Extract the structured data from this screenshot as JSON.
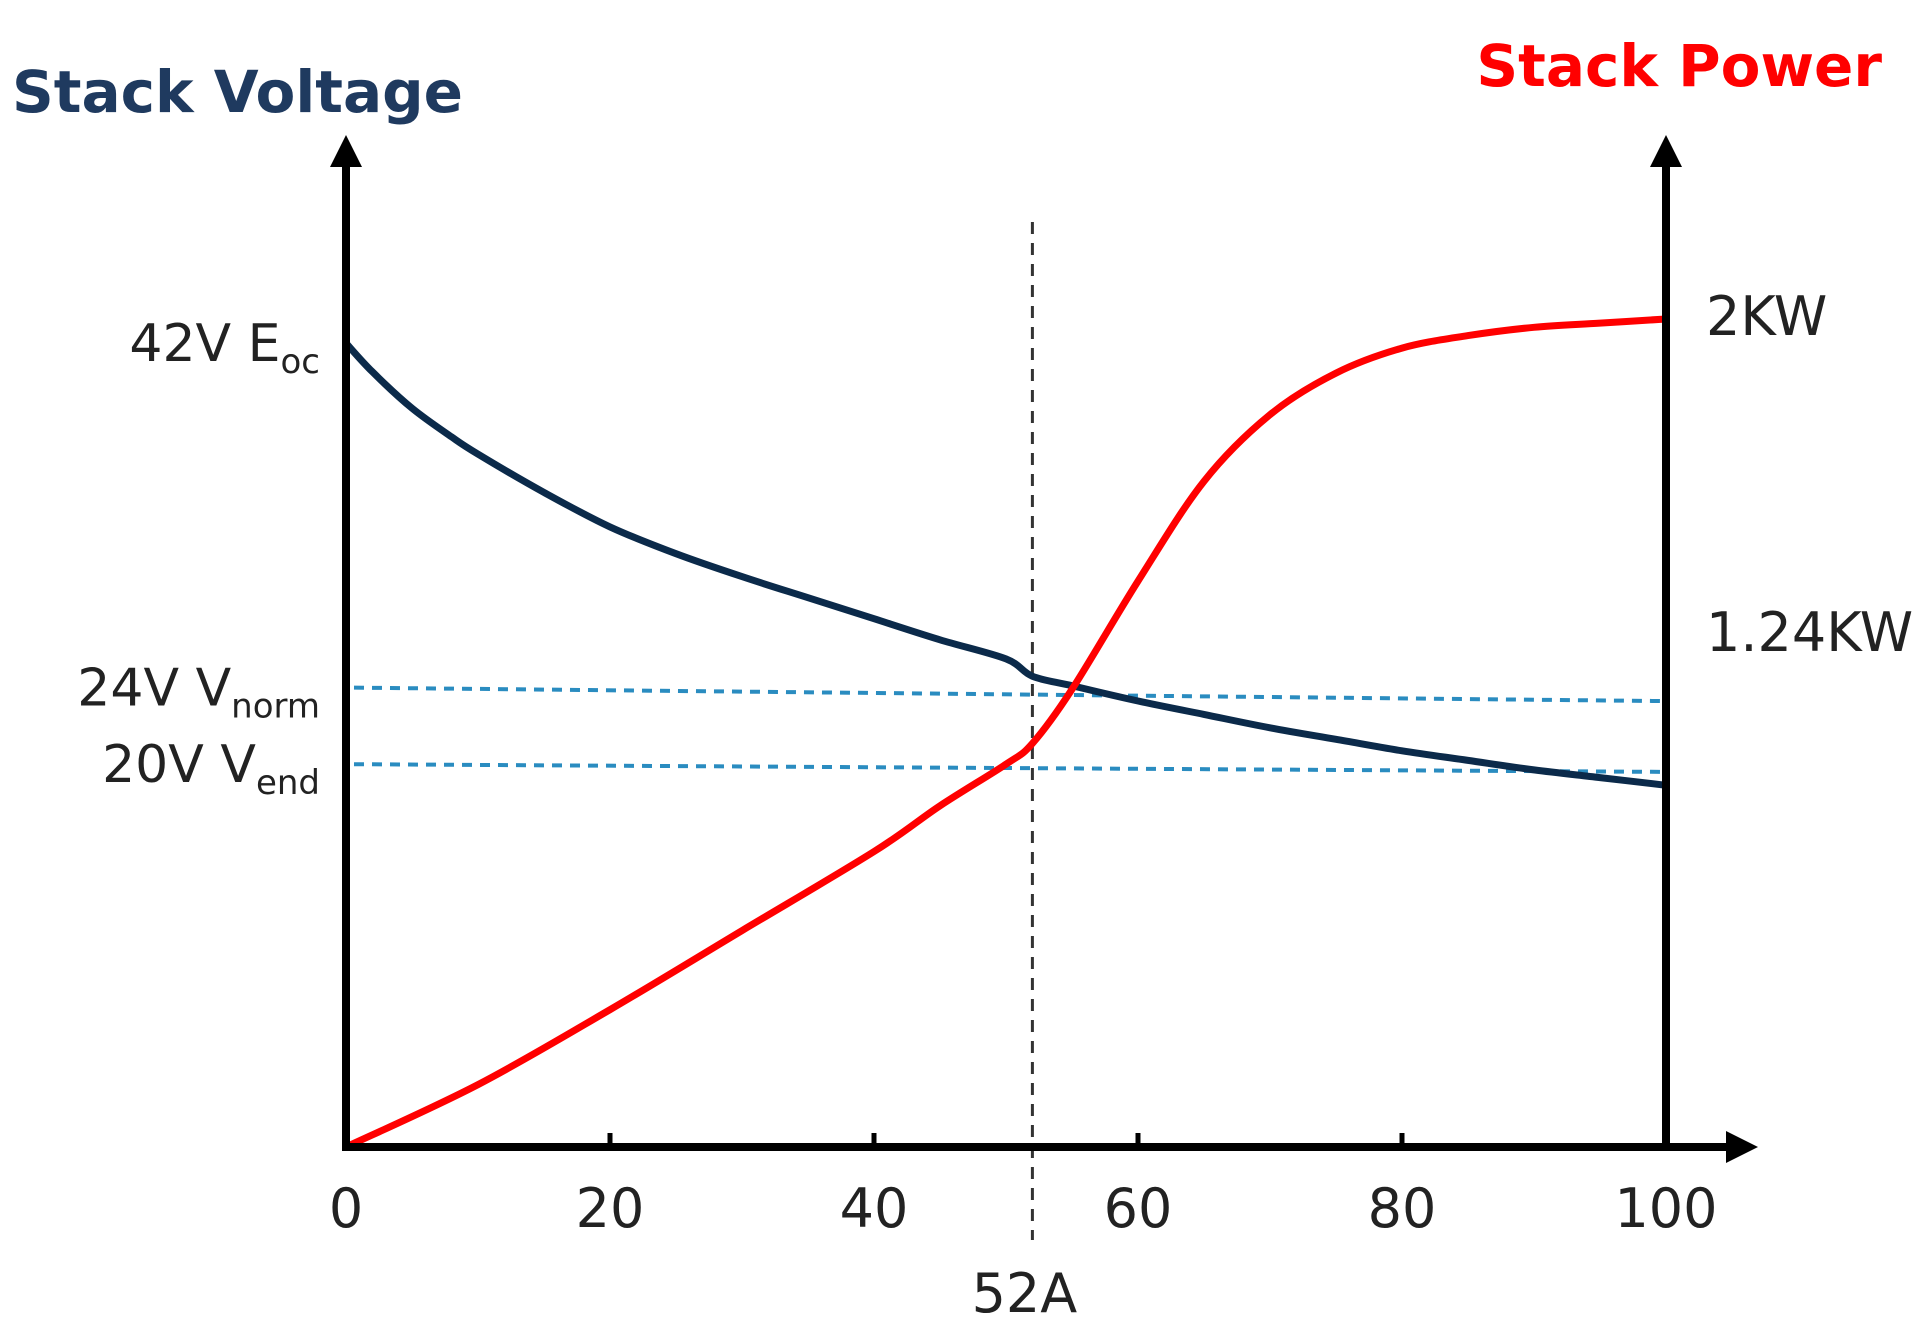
{
  "chart_data": {
    "type": "line",
    "title": "",
    "x_ticks": [
      "0",
      "20",
      "40",
      "60",
      "80",
      "100"
    ],
    "x_range": [
      0,
      104
    ],
    "x_marker": {
      "x": 52,
      "label": "52A"
    },
    "y_left": {
      "label": "Stack Voltage",
      "range": [
        0,
        50
      ],
      "annotations": [
        {
          "value": 42,
          "text": "42V E",
          "sub": "oc"
        },
        {
          "value": 24,
          "text": "24V V",
          "sub": "norm"
        },
        {
          "value": 20,
          "text": "20V V",
          "sub": "end"
        }
      ]
    },
    "y_right": {
      "label": "Stack Power",
      "range": [
        0,
        2.3
      ],
      "annotations": [
        {
          "value": 2.0,
          "text": "2KW"
        },
        {
          "value": 1.24,
          "text": "1.24KW"
        }
      ]
    },
    "reference_lines": [
      {
        "axis": "left",
        "y_start": 24,
        "y_end": 23.3
      },
      {
        "axis": "left",
        "y_start": 20,
        "y_end": 19.6
      }
    ],
    "series": [
      {
        "axis": "left",
        "color": "#0b2a4a",
        "x": [
          0,
          2,
          5,
          8,
          10,
          15,
          20,
          25,
          30,
          35,
          40,
          45,
          50,
          52,
          55,
          60,
          65,
          70,
          75,
          80,
          85,
          90,
          95,
          100
        ],
        "y": [
          42,
          40.5,
          38.6,
          37.1,
          36.2,
          34.2,
          32.4,
          31.0,
          29.8,
          28.7,
          27.6,
          26.5,
          25.5,
          24.6,
          24.1,
          23.3,
          22.6,
          21.9,
          21.3,
          20.7,
          20.2,
          19.7,
          19.3,
          18.9
        ]
      },
      {
        "axis": "right",
        "color": "#ff0000",
        "x": [
          0,
          10,
          20,
          30,
          40,
          45,
          50,
          52,
          55,
          60,
          65,
          70,
          75,
          80,
          85,
          90,
          95,
          100
        ],
        "y": [
          0,
          0.15,
          0.33,
          0.52,
          0.71,
          0.82,
          0.92,
          0.97,
          1.1,
          1.36,
          1.6,
          1.76,
          1.86,
          1.92,
          1.95,
          1.97,
          1.98,
          1.99
        ]
      }
    ],
    "colors": {
      "axis": "#000000",
      "left_label": "#1f3a5f",
      "right_label": "#ff0000",
      "reference": "#2a8cc0"
    },
    "grid": false
  }
}
